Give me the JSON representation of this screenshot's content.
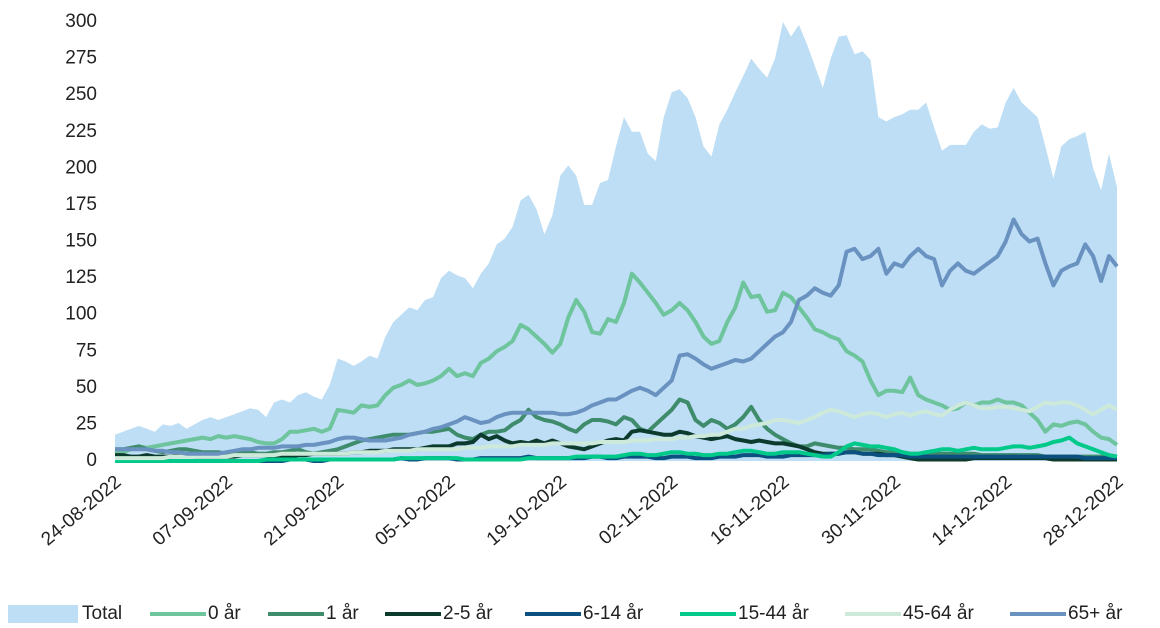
{
  "chart_data": {
    "type": "line",
    "categories": [
      "24-08-2022",
      null,
      null,
      null,
      null,
      null,
      null,
      null,
      null,
      null,
      null,
      null,
      null,
      null,
      "07-09-2022",
      null,
      null,
      null,
      null,
      null,
      null,
      null,
      null,
      null,
      null,
      null,
      null,
      null,
      "21-09-2022",
      null,
      null,
      null,
      null,
      null,
      null,
      null,
      null,
      null,
      null,
      null,
      null,
      null,
      "05-10-2022",
      null,
      null,
      null,
      null,
      null,
      null,
      null,
      null,
      null,
      null,
      null,
      null,
      null,
      "19-10-2022",
      null,
      null,
      null,
      null,
      null,
      null,
      null,
      null,
      null,
      null,
      null,
      null,
      null,
      "02-11-2022",
      null,
      null,
      null,
      null,
      null,
      null,
      null,
      null,
      null,
      null,
      null,
      null,
      null,
      "16-11-2022",
      null,
      null,
      null,
      null,
      null,
      null,
      null,
      null,
      null,
      null,
      null,
      null,
      null,
      "30-11-2022",
      null,
      null,
      null,
      null,
      null,
      null,
      null,
      null,
      null,
      null,
      null,
      null,
      null,
      "14-12-2022",
      null,
      null,
      null,
      null,
      null,
      null,
      null,
      null,
      null,
      null,
      null,
      null,
      null,
      "28-12-2022"
    ],
    "ylim": [
      0,
      300
    ],
    "yticks": [
      0,
      25,
      50,
      75,
      100,
      125,
      150,
      175,
      200,
      225,
      250,
      275,
      300
    ],
    "grid": false,
    "legend": "bottom",
    "series": [
      {
        "name": "Total",
        "color": "#bddef5",
        "area": true,
        "values": [
          18,
          20,
          22,
          24,
          22,
          20,
          25,
          24,
          26,
          22,
          25,
          28,
          30,
          28,
          30,
          32,
          34,
          36,
          35,
          30,
          40,
          42,
          40,
          45,
          47,
          44,
          42,
          52,
          70,
          68,
          65,
          68,
          72,
          70,
          85,
          95,
          100,
          105,
          103,
          110,
          112,
          125,
          130,
          127,
          125,
          118,
          128,
          135,
          148,
          152,
          160,
          178,
          182,
          172,
          155,
          168,
          195,
          202,
          195,
          175,
          175,
          190,
          192,
          215,
          235,
          225,
          225,
          210,
          205,
          235,
          252,
          254,
          248,
          235,
          215,
          208,
          230,
          240,
          252,
          263,
          275,
          268,
          262,
          275,
          300,
          290,
          298,
          285,
          270,
          255,
          275,
          290,
          291,
          278,
          280,
          274,
          235,
          232,
          235,
          237,
          240,
          240,
          245,
          228,
          212,
          216,
          216,
          216,
          225,
          230,
          227,
          228,
          245,
          255,
          245,
          240,
          235,
          215,
          193,
          215,
          220,
          222,
          225,
          200,
          185,
          210,
          187
        ]
      },
      {
        "name": "0 år",
        "color": "#6ec49c",
        "values": [
          5,
          6,
          8,
          10,
          9,
          10,
          11,
          12,
          13,
          14,
          15,
          16,
          15,
          17,
          16,
          17,
          16,
          15,
          13,
          12,
          12,
          15,
          20,
          20,
          21,
          22,
          20,
          22,
          35,
          34,
          33,
          38,
          37,
          38,
          45,
          50,
          52,
          55,
          52,
          53,
          55,
          58,
          63,
          58,
          60,
          58,
          67,
          70,
          75,
          78,
          82,
          93,
          90,
          85,
          80,
          74,
          80,
          98,
          110,
          102,
          88,
          87,
          97,
          95,
          108,
          128,
          122,
          115,
          108,
          100,
          103,
          108,
          103,
          95,
          85,
          80,
          82,
          95,
          105,
          122,
          112,
          113,
          102,
          103,
          115,
          112,
          105,
          98,
          90,
          88,
          85,
          83,
          75,
          72,
          68,
          55,
          45,
          48,
          48,
          47,
          57,
          45,
          42,
          40,
          38,
          35,
          36,
          40,
          38,
          40,
          40,
          42,
          40,
          40,
          38,
          33,
          28,
          20,
          25,
          24,
          26,
          27,
          25,
          20,
          16,
          15,
          11
        ]
      },
      {
        "name": "1 år",
        "color": "#3f8c6c",
        "values": [
          8,
          8,
          9,
          10,
          8,
          7,
          6,
          7,
          8,
          8,
          7,
          6,
          6,
          6,
          5,
          5,
          6,
          6,
          5,
          5,
          6,
          6,
          7,
          8,
          6,
          5,
          6,
          7,
          8,
          10,
          12,
          14,
          15,
          16,
          17,
          18,
          18,
          18,
          19,
          20,
          20,
          21,
          22,
          18,
          16,
          15,
          18,
          20,
          20,
          21,
          25,
          28,
          35,
          30,
          28,
          27,
          25,
          22,
          20,
          25,
          28,
          28,
          27,
          25,
          30,
          28,
          22,
          20,
          25,
          30,
          35,
          42,
          40,
          28,
          24,
          28,
          26,
          22,
          25,
          30,
          37,
          28,
          22,
          18,
          15,
          12,
          10,
          10,
          12,
          11,
          10,
          9,
          9,
          8,
          8,
          8,
          7,
          6,
          6,
          6,
          5,
          5,
          5,
          5,
          5,
          5,
          5,
          5,
          5,
          4,
          4,
          4,
          4,
          4,
          4,
          4,
          4,
          3,
          3,
          3,
          3,
          3,
          3,
          3,
          3,
          3,
          3
        ]
      },
      {
        "name": "2-5 år",
        "color": "#0c3b2e",
        "values": [
          4,
          4,
          3,
          3,
          4,
          3,
          3,
          3,
          4,
          4,
          3,
          3,
          3,
          3,
          3,
          3,
          4,
          4,
          4,
          4,
          3,
          3,
          3,
          4,
          4,
          5,
          5,
          5,
          5,
          5,
          6,
          6,
          7,
          7,
          7,
          8,
          8,
          8,
          8,
          9,
          10,
          10,
          10,
          12,
          12,
          13,
          18,
          15,
          17,
          14,
          12,
          13,
          12,
          14,
          12,
          14,
          12,
          10,
          9,
          8,
          10,
          12,
          14,
          15,
          14,
          20,
          21,
          20,
          19,
          18,
          18,
          20,
          19,
          17,
          16,
          15,
          16,
          17,
          15,
          14,
          13,
          14,
          13,
          12,
          12,
          11,
          10,
          8,
          6,
          5,
          5,
          5,
          6,
          6,
          5,
          5,
          5,
          4,
          4,
          3,
          2,
          1,
          1,
          1,
          1,
          1,
          1,
          1,
          2,
          2,
          2,
          2,
          2,
          2,
          2,
          2,
          2,
          2,
          1,
          1,
          1,
          1,
          1,
          1,
          1,
          1,
          1
        ]
      },
      {
        "name": "6-14 år",
        "color": "#0c5080",
        "values": [
          0,
          0,
          0,
          0,
          0,
          0,
          0,
          0,
          0,
          0,
          0,
          0,
          0,
          0,
          0,
          0,
          0,
          0,
          0,
          0,
          0,
          0,
          1,
          1,
          1,
          0,
          0,
          1,
          1,
          1,
          1,
          1,
          1,
          1,
          1,
          1,
          2,
          1,
          1,
          2,
          2,
          2,
          2,
          1,
          1,
          1,
          2,
          2,
          2,
          2,
          2,
          2,
          3,
          2,
          2,
          2,
          2,
          2,
          2,
          2,
          3,
          3,
          2,
          2,
          3,
          3,
          3,
          3,
          2,
          2,
          3,
          3,
          3,
          2,
          2,
          2,
          3,
          3,
          3,
          4,
          4,
          4,
          3,
          3,
          3,
          4,
          4,
          4,
          4,
          4,
          5,
          5,
          6,
          6,
          5,
          5,
          4,
          4,
          4,
          4,
          3,
          3,
          3,
          3,
          3,
          3,
          3,
          3,
          3,
          3,
          3,
          3,
          3,
          3,
          3,
          3,
          3,
          3,
          3,
          3,
          3,
          3,
          2,
          2,
          2,
          2,
          2
        ]
      },
      {
        "name": "15-44 år",
        "color": "#00c98a",
        "values": [
          0,
          0,
          0,
          0,
          0,
          0,
          0,
          0,
          0,
          0,
          0,
          0,
          0,
          0,
          0,
          0,
          0,
          0,
          0,
          1,
          1,
          1,
          1,
          1,
          1,
          1,
          1,
          1,
          1,
          1,
          1,
          1,
          1,
          1,
          1,
          1,
          2,
          2,
          2,
          2,
          2,
          2,
          2,
          2,
          1,
          1,
          1,
          1,
          1,
          1,
          1,
          1,
          2,
          2,
          2,
          2,
          2,
          2,
          3,
          3,
          3,
          3,
          3,
          3,
          4,
          5,
          5,
          4,
          4,
          5,
          6,
          6,
          5,
          5,
          4,
          4,
          5,
          5,
          6,
          7,
          7,
          6,
          5,
          5,
          6,
          6,
          6,
          5,
          4,
          3,
          3,
          6,
          10,
          12,
          11,
          10,
          10,
          9,
          8,
          6,
          5,
          5,
          6,
          7,
          8,
          8,
          7,
          8,
          9,
          8,
          8,
          8,
          9,
          10,
          10,
          9,
          10,
          11,
          13,
          14,
          16,
          12,
          10,
          8,
          6,
          4,
          3
        ]
      },
      {
        "name": "45-64 år",
        "color": "#cde9da",
        "values": [
          2,
          2,
          2,
          2,
          2,
          2,
          2,
          3,
          3,
          3,
          3,
          3,
          3,
          3,
          3,
          4,
          4,
          4,
          4,
          4,
          4,
          5,
          5,
          5,
          5,
          5,
          5,
          5,
          5,
          5,
          6,
          6,
          6,
          6,
          7,
          7,
          7,
          7,
          8,
          8,
          8,
          8,
          8,
          8,
          9,
          9,
          9,
          10,
          10,
          10,
          10,
          11,
          11,
          11,
          11,
          12,
          12,
          12,
          12,
          12,
          12,
          13,
          13,
          13,
          13,
          14,
          14,
          14,
          15,
          15,
          15,
          16,
          16,
          17,
          17,
          18,
          18,
          20,
          22,
          22,
          24,
          25,
          26,
          28,
          28,
          27,
          26,
          28,
          30,
          33,
          35,
          34,
          32,
          30,
          32,
          33,
          32,
          30,
          32,
          33,
          31,
          33,
          34,
          32,
          31,
          35,
          38,
          40,
          38,
          36,
          36,
          37,
          37,
          36,
          35,
          34,
          37,
          40,
          39,
          40,
          40,
          38,
          35,
          32,
          35,
          38,
          35
        ]
      },
      {
        "name": "65+ år",
        "color": "#6a92c0",
        "values": [
          8,
          8,
          8,
          8,
          8,
          7,
          7,
          6,
          6,
          5,
          5,
          5,
          5,
          5,
          6,
          7,
          8,
          8,
          9,
          9,
          9,
          10,
          10,
          10,
          11,
          11,
          12,
          13,
          15,
          16,
          16,
          15,
          14,
          14,
          14,
          15,
          16,
          18,
          19,
          20,
          22,
          23,
          25,
          27,
          30,
          28,
          26,
          27,
          30,
          32,
          33,
          33,
          33,
          33,
          33,
          33,
          32,
          32,
          33,
          35,
          38,
          40,
          42,
          42,
          45,
          48,
          50,
          48,
          45,
          50,
          55,
          72,
          73,
          70,
          66,
          63,
          65,
          67,
          69,
          68,
          70,
          75,
          80,
          85,
          88,
          95,
          110,
          113,
          118,
          115,
          113,
          120,
          143,
          145,
          138,
          140,
          145,
          128,
          135,
          133,
          140,
          145,
          140,
          138,
          120,
          130,
          135,
          130,
          128,
          132,
          136,
          140,
          150,
          165,
          155,
          150,
          152,
          135,
          120,
          130,
          133,
          135,
          148,
          140,
          123,
          140,
          133
        ]
      }
    ]
  }
}
